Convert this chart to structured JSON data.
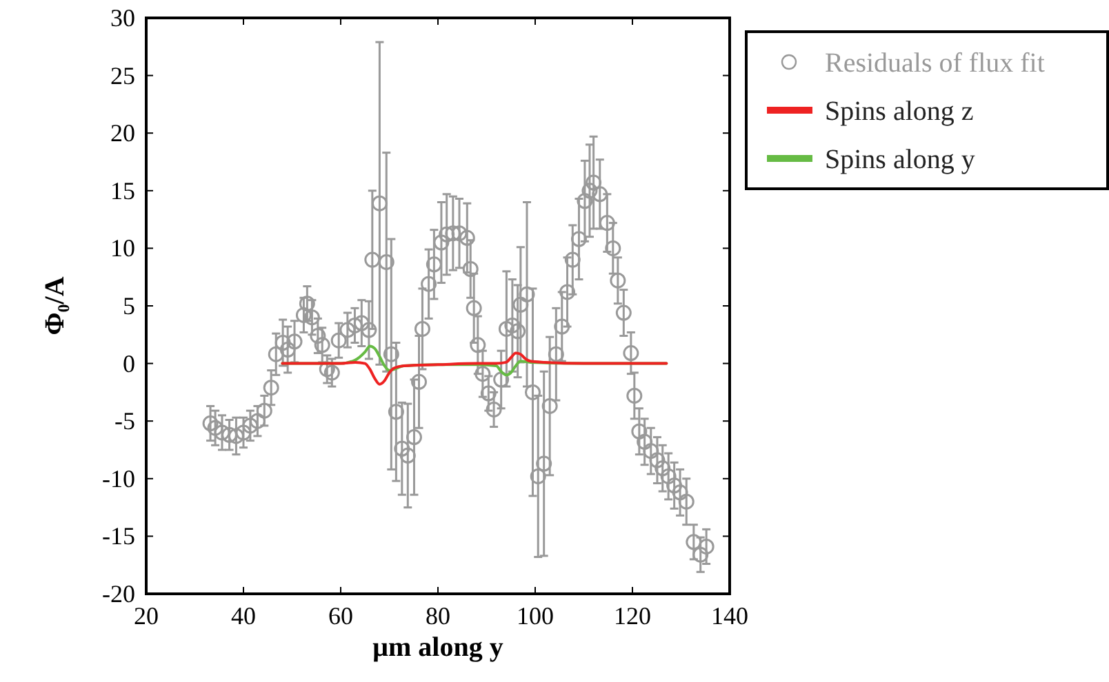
{
  "chart_data": {
    "type": "scatter",
    "xlabel": "μm along y",
    "ylabel": "Φ₀/A",
    "xlim": [
      20,
      140
    ],
    "ylim": [
      -20,
      30
    ],
    "xticks": [
      20,
      40,
      60,
      80,
      100,
      120,
      140
    ],
    "yticks": [
      -20,
      -15,
      -10,
      -5,
      0,
      5,
      10,
      15,
      20,
      25,
      30
    ],
    "grid": false,
    "legend": "top right",
    "marker": "circle",
    "series": [
      {
        "name": "Residuals of flux fit",
        "type": "scatter",
        "color": "#999999",
        "x": [
          33.2,
          34.2,
          35.6,
          37.1,
          38.5,
          40,
          41.4,
          42.9,
          44.3,
          45.7,
          46.7,
          48.1,
          49.1,
          50.5,
          52.4,
          53.1,
          54.1,
          55.3,
          56.2,
          57.2,
          58.2,
          59.6,
          61.4,
          62.9,
          64.3,
          65.8,
          66.5,
          68,
          69.4,
          70.4,
          71.4,
          72.6,
          73.8,
          75.1,
          76.1,
          76.8,
          78.1,
          79.2,
          80.7,
          81.8,
          83.1,
          84.4,
          86,
          86.7,
          87.4,
          88.2,
          89.2,
          90.4,
          91.5,
          93,
          94.1,
          95.3,
          96.4,
          97,
          98.3,
          99.5,
          100.6,
          101.8,
          103,
          104.3,
          105.5,
          106.6,
          107.7,
          109,
          110.2,
          111.2,
          112,
          113.3,
          114.8,
          116,
          117,
          118.2,
          119.7,
          120.4,
          121.4,
          122.5,
          123.8,
          125.1,
          126.2,
          127.4,
          128.6,
          129.8,
          131.1,
          132.6,
          134,
          135.2
        ],
        "values": [
          -5.2,
          -5.6,
          -6,
          -6.2,
          -6.3,
          -6,
          -5.4,
          -5,
          -4.1,
          -2.1,
          0.8,
          1.8,
          1.2,
          1.9,
          4.2,
          5.2,
          4,
          2.4,
          1.6,
          -0.5,
          -0.8,
          2,
          2.9,
          3.3,
          3.5,
          2.9,
          9,
          13.9,
          8.8,
          0.8,
          -4.2,
          -7.4,
          -8,
          -6.4,
          -1.6,
          3,
          6.9,
          8.6,
          10.5,
          11.2,
          11.3,
          11.3,
          10.9,
          8.2,
          4.8,
          1.6,
          -0.9,
          -2.6,
          -4,
          -1.4,
          3,
          3.3,
          2.8,
          5.1,
          6,
          -2.5,
          -9.8,
          -8.7,
          -3.7,
          0.8,
          3.2,
          6.2,
          9,
          10.8,
          14.1,
          15,
          15.7,
          14.7,
          12.2,
          10,
          7.2,
          4.4,
          0.9,
          -2.8,
          -5.9,
          -6.8,
          -7.6,
          -8.4,
          -9.1,
          -9.8,
          -10.6,
          -11.2,
          -12,
          -15.5,
          -16.6,
          -15.9
        ],
        "errors": [
          1.5,
          1.5,
          1.5,
          1.3,
          1.6,
          1.3,
          1.3,
          1.3,
          1.3,
          1.5,
          1.8,
          2,
          2,
          1.8,
          1.5,
          1.5,
          1.5,
          1.5,
          1.5,
          1.2,
          1.2,
          1.5,
          1.5,
          1.5,
          2,
          2.5,
          6,
          14,
          9.5,
          10,
          6,
          4,
          4.5,
          5,
          4,
          3.5,
          3,
          3,
          3.5,
          3.5,
          3.2,
          3,
          3,
          2.5,
          3,
          2.5,
          2,
          1.5,
          1.5,
          2.5,
          5,
          4,
          4,
          5,
          8,
          9,
          7,
          8,
          6,
          4,
          3,
          3,
          3,
          3.5,
          3.5,
          4,
          4,
          3,
          2.5,
          2.2,
          2,
          2,
          1.8,
          2,
          2,
          2,
          2,
          2,
          2,
          2,
          2,
          2,
          2,
          1.5,
          1.5,
          1.5
        ]
      },
      {
        "name": "Spins along y",
        "type": "line",
        "color": "#66bb44",
        "marker": "none",
        "x": [
          48,
          60,
          63,
          65,
          66,
          67,
          68,
          69,
          70,
          71,
          73,
          80,
          88,
          92,
          93,
          94,
          95,
          96,
          97,
          99,
          110,
          127
        ],
        "values": [
          0,
          0,
          0.3,
          1,
          1.5,
          1.3,
          0.6,
          -0.2,
          -0.6,
          -0.5,
          -0.2,
          -0.1,
          -0.1,
          -0.2,
          -0.7,
          -1,
          -0.8,
          -0.2,
          0.2,
          0.1,
          0,
          0
        ]
      },
      {
        "name": "Spins along z",
        "type": "line",
        "color": "#ee2222",
        "marker": "none",
        "x": [
          48,
          60,
          63,
          65,
          66,
          67,
          68,
          69,
          70,
          71,
          73,
          80,
          88,
          92,
          94,
          95,
          96,
          97,
          98,
          99,
          102,
          110,
          120,
          127
        ],
        "values": [
          0,
          0,
          0.1,
          0,
          -0.5,
          -1.3,
          -1.8,
          -1.5,
          -0.8,
          -0.4,
          -0.2,
          -0.1,
          0,
          0,
          0.1,
          0.5,
          0.9,
          0.8,
          0.4,
          0.2,
          0.1,
          0,
          0,
          0
        ]
      }
    ]
  }
}
